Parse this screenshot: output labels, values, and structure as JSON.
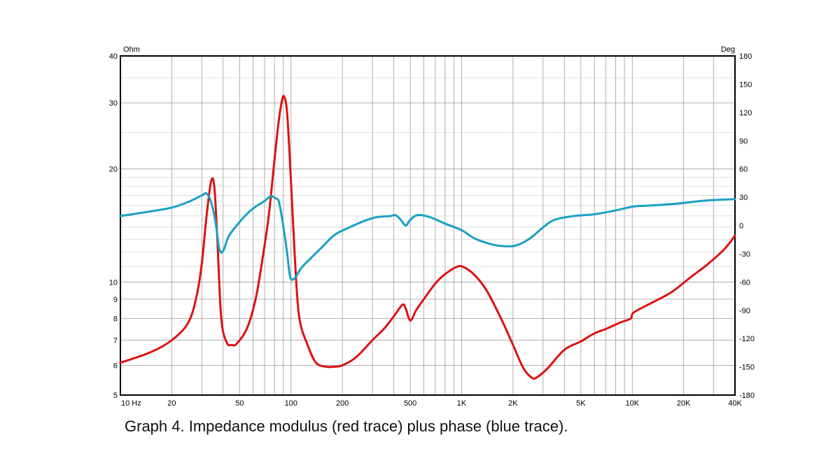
{
  "caption": "Graph 4. Impedance modulus (red trace) plus phase (blue trace).",
  "chart_data": {
    "type": "line",
    "x_scale": "log",
    "grid": true,
    "xlim": [
      10,
      40000
    ],
    "left_axis": {
      "unit": "Ohm",
      "scale": "log",
      "ylim": [
        5,
        40
      ],
      "ticks": [
        5,
        6,
        7,
        8,
        9,
        10,
        20,
        30,
        40
      ],
      "tick_labels": [
        "5",
        "6",
        "7",
        "8",
        "9",
        "10",
        "20",
        "30",
        "40"
      ]
    },
    "right_axis": {
      "unit": "Deg",
      "scale": "linear",
      "ylim": [
        -180,
        180
      ],
      "ticks": [
        -180,
        -150,
        -120,
        -90,
        -60,
        -30,
        0,
        30,
        60,
        90,
        120,
        150,
        180
      ],
      "tick_labels": [
        "-180",
        "-150",
        "-120",
        "-90",
        "-60",
        "-30",
        "0",
        "30",
        "60",
        "90",
        "120",
        "150",
        "180"
      ]
    },
    "x_ticks": [
      10,
      20,
      50,
      100,
      200,
      500,
      1000,
      2000,
      5000,
      10000,
      20000,
      40000
    ],
    "x_tick_labels": [
      "10  Hz",
      "20",
      "50",
      "100",
      "200",
      "500",
      "1K",
      "2K",
      "5K",
      "10K",
      "20K",
      "40K"
    ],
    "series": [
      {
        "axis": "left",
        "color": "#dd1111",
        "points": [
          [
            10,
            6.1
          ],
          [
            15,
            6.5
          ],
          [
            20,
            7.0
          ],
          [
            25,
            7.8
          ],
          [
            28,
            9.2
          ],
          [
            30,
            11.2
          ],
          [
            32,
            15.0
          ],
          [
            34,
            18.5
          ],
          [
            35.5,
            18.0
          ],
          [
            37,
            13.0
          ],
          [
            39,
            8.0
          ],
          [
            42,
            6.9
          ],
          [
            45,
            6.8
          ],
          [
            48,
            6.85
          ],
          [
            55,
            7.5
          ],
          [
            62,
            9.0
          ],
          [
            68,
            11.5
          ],
          [
            74,
            15.0
          ],
          [
            79,
            20.0
          ],
          [
            84,
            26.0
          ],
          [
            88,
            30.0
          ],
          [
            91,
            31.2
          ],
          [
            95,
            28.0
          ],
          [
            100,
            18.5
          ],
          [
            106,
            11.0
          ],
          [
            112,
            8.0
          ],
          [
            125,
            6.8
          ],
          [
            140,
            6.1
          ],
          [
            160,
            5.95
          ],
          [
            180,
            5.95
          ],
          [
            200,
            6.0
          ],
          [
            240,
            6.3
          ],
          [
            300,
            7.0
          ],
          [
            350,
            7.5
          ],
          [
            400,
            8.1
          ],
          [
            450,
            8.7
          ],
          [
            470,
            8.5
          ],
          [
            500,
            7.9
          ],
          [
            540,
            8.4
          ],
          [
            600,
            9.0
          ],
          [
            700,
            9.9
          ],
          [
            800,
            10.5
          ],
          [
            950,
            11.0
          ],
          [
            1050,
            10.9
          ],
          [
            1200,
            10.4
          ],
          [
            1400,
            9.5
          ],
          [
            1700,
            8.0
          ],
          [
            2000,
            6.8
          ],
          [
            2300,
            5.9
          ],
          [
            2600,
            5.55
          ],
          [
            2800,
            5.6
          ],
          [
            3200,
            5.9
          ],
          [
            4000,
            6.6
          ],
          [
            5000,
            6.95
          ],
          [
            6000,
            7.3
          ],
          [
            7000,
            7.5
          ],
          [
            8500,
            7.8
          ],
          [
            9800,
            8.0
          ],
          [
            10200,
            8.3
          ],
          [
            13000,
            8.8
          ],
          [
            17000,
            9.4
          ],
          [
            22000,
            10.3
          ],
          [
            28000,
            11.2
          ],
          [
            35000,
            12.3
          ],
          [
            40000,
            13.3
          ]
        ]
      },
      {
        "axis": "right",
        "color": "#1aa0c4",
        "points": [
          [
            10,
            10
          ],
          [
            15,
            15
          ],
          [
            20,
            19
          ],
          [
            25,
            25
          ],
          [
            30,
            32
          ],
          [
            32,
            34
          ],
          [
            34,
            25
          ],
          [
            36,
            5
          ],
          [
            38,
            -25
          ],
          [
            40,
            -27
          ],
          [
            43,
            -12
          ],
          [
            48,
            0
          ],
          [
            55,
            12
          ],
          [
            62,
            20
          ],
          [
            70,
            26
          ],
          [
            76,
            31
          ],
          [
            81,
            29
          ],
          [
            85,
            25
          ],
          [
            90,
            0
          ],
          [
            95,
            -30
          ],
          [
            99,
            -55
          ],
          [
            105,
            -56
          ],
          [
            115,
            -45
          ],
          [
            130,
            -35
          ],
          [
            150,
            -24
          ],
          [
            180,
            -10
          ],
          [
            220,
            -2
          ],
          [
            270,
            5
          ],
          [
            320,
            9
          ],
          [
            380,
            10
          ],
          [
            410,
            11
          ],
          [
            440,
            6
          ],
          [
            470,
            0
          ],
          [
            500,
            6
          ],
          [
            550,
            11
          ],
          [
            650,
            9
          ],
          [
            800,
            2
          ],
          [
            1000,
            -5
          ],
          [
            1200,
            -14
          ],
          [
            1500,
            -20
          ],
          [
            1800,
            -22
          ],
          [
            2100,
            -21
          ],
          [
            2500,
            -14
          ],
          [
            3000,
            -2
          ],
          [
            3500,
            6
          ],
          [
            4500,
            10
          ],
          [
            6000,
            12
          ],
          [
            8000,
            16
          ],
          [
            10000,
            20
          ],
          [
            12000,
            21
          ],
          [
            15000,
            22
          ],
          [
            20000,
            24
          ],
          [
            25000,
            26
          ],
          [
            30000,
            27
          ],
          [
            40000,
            28
          ]
        ]
      }
    ]
  }
}
